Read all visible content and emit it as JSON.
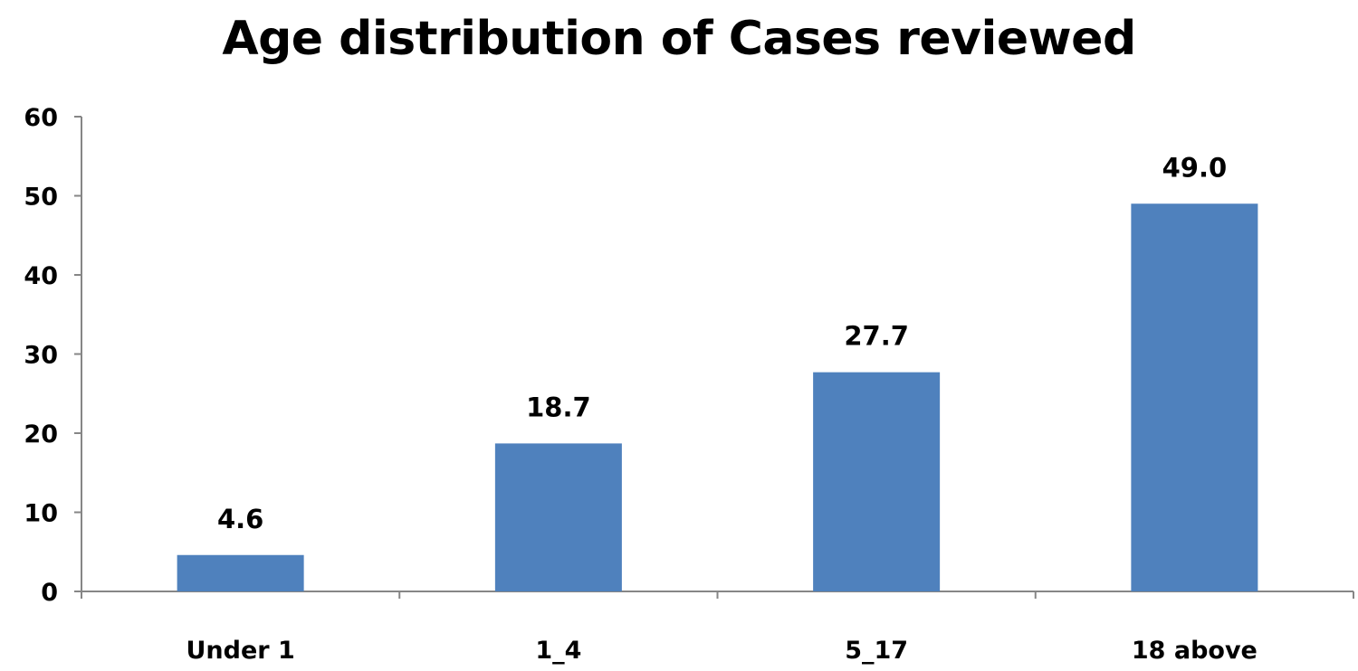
{
  "chart_data": {
    "type": "bar",
    "title": "Age distribution of Cases reviewed",
    "categories": [
      "Under 1",
      "1_4",
      "5_17",
      "18 above"
    ],
    "values": [
      4.6,
      18.7,
      27.7,
      49.0
    ],
    "data_labels": [
      "4.6",
      "18.7",
      "27.7",
      "49.0"
    ],
    "y_ticks": [
      "0",
      "10",
      "20",
      "30",
      "40",
      "50",
      "60"
    ],
    "ylim": [
      0,
      60
    ],
    "xlabel": "",
    "ylabel": "",
    "grid": false,
    "legend": "none",
    "bar_color": "#4F81BD"
  }
}
